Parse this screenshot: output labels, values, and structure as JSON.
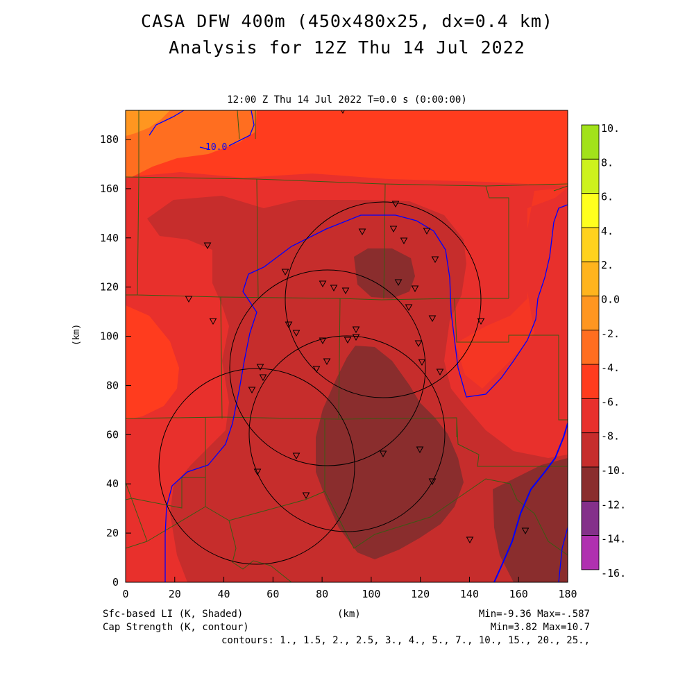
{
  "header": {
    "title_line1": "CASA DFW 400m (450x480x25, dx=0.4 km)",
    "title_line2": "Analysis for 12Z Thu 14 Jul 2022",
    "valid_time": "12:00 Z Thu 14 Jul 2022    T=0.0 s (0:00:00)"
  },
  "axes": {
    "x_unit": "(km)",
    "y_unit": "(km)",
    "x_ticks": [
      "0",
      "20",
      "40",
      "60",
      "80",
      "100",
      "120",
      "140",
      "160",
      "180"
    ],
    "y_ticks": [
      "0",
      "20",
      "40",
      "60",
      "80",
      "100",
      "120",
      "140",
      "160",
      "180"
    ]
  },
  "colorbar": {
    "labels": [
      "10.",
      "8.",
      "6.",
      "4.",
      "2.",
      "0.0",
      "-2.",
      "-4.",
      "-6.",
      "-8.",
      "-10.",
      "-12.",
      "-14.",
      "-16."
    ],
    "colors": [
      "#a2e21a",
      "#cdf21c",
      "#ffff1e",
      "#ffd21e",
      "#ffb41e",
      "#ff9620",
      "#ff6e20",
      "#ff3c1e",
      "#e8302c",
      "#c62d2c",
      "#8a2d2d",
      "#84308a",
      "#b030b0",
      "#d83ada"
    ]
  },
  "footer": {
    "shaded_field": "Sfc-based LI (K, Shaded)",
    "contour_field": "Cap Strength (K, contour)",
    "x_unit": "(km)",
    "shaded_range": "Min=-9.36 Max=-.587",
    "contour_range": "Min=3.82 Max=10.7",
    "contours": "contours: 1., 1.5, 2., 2.5, 3., 4., 5., 7., 10., 15., 20., 25.,"
  },
  "map": {
    "contour_label": "10.0",
    "fill_colors": {
      "outer": "#e8302c",
      "warm": "#ff3c1e",
      "warmest": "#ff6e20",
      "hot_core": "#ff9620",
      "cool": "#c62d2c",
      "coolest": "#8a2d2d"
    },
    "contour_color": "#0000ff",
    "county_line_color": "#3a5a14",
    "radar_ring_color": "#000000"
  }
}
